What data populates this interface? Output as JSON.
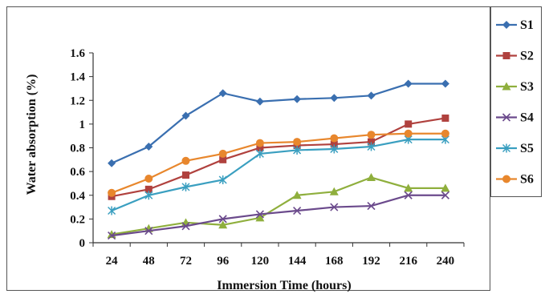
{
  "chart_data": {
    "type": "line",
    "title": "",
    "xlabel": "Immersion Time (hours)",
    "ylabel": "Water absorption (%)",
    "categories": [
      "24",
      "48",
      "72",
      "96",
      "120",
      "144",
      "168",
      "192",
      "216",
      "240"
    ],
    "y_ticks": [
      "0",
      "0.2",
      "0.4",
      "0.6",
      "0.8",
      "1",
      "1.2",
      "1.4",
      "1.6"
    ],
    "ylim": [
      0,
      1.6
    ],
    "grid": false,
    "legend_position": "right",
    "series": [
      {
        "name": "S1",
        "color": "#3a6fb0",
        "marker": "diamond",
        "values": [
          0.67,
          0.81,
          1.07,
          1.26,
          1.19,
          1.21,
          1.22,
          1.24,
          1.34,
          1.34
        ]
      },
      {
        "name": "S2",
        "color": "#b0413e",
        "marker": "square",
        "values": [
          0.39,
          0.45,
          0.57,
          0.7,
          0.8,
          0.82,
          0.83,
          0.85,
          1.0,
          1.05
        ]
      },
      {
        "name": "S3",
        "color": "#8faf3d",
        "marker": "triangle",
        "values": [
          0.07,
          0.12,
          0.17,
          0.15,
          0.21,
          0.4,
          0.43,
          0.55,
          0.46,
          0.46
        ]
      },
      {
        "name": "S4",
        "color": "#6b4a8c",
        "marker": "x",
        "values": [
          0.06,
          0.1,
          0.14,
          0.2,
          0.24,
          0.27,
          0.3,
          0.31,
          0.4,
          0.4
        ]
      },
      {
        "name": "S5",
        "color": "#3a9fc0",
        "marker": "asterisk",
        "values": [
          0.27,
          0.4,
          0.47,
          0.53,
          0.75,
          0.78,
          0.79,
          0.81,
          0.87,
          0.87
        ]
      },
      {
        "name": "S6",
        "color": "#e8872d",
        "marker": "circle",
        "values": [
          0.42,
          0.54,
          0.69,
          0.75,
          0.84,
          0.85,
          0.88,
          0.91,
          0.92,
          0.92
        ]
      }
    ]
  }
}
